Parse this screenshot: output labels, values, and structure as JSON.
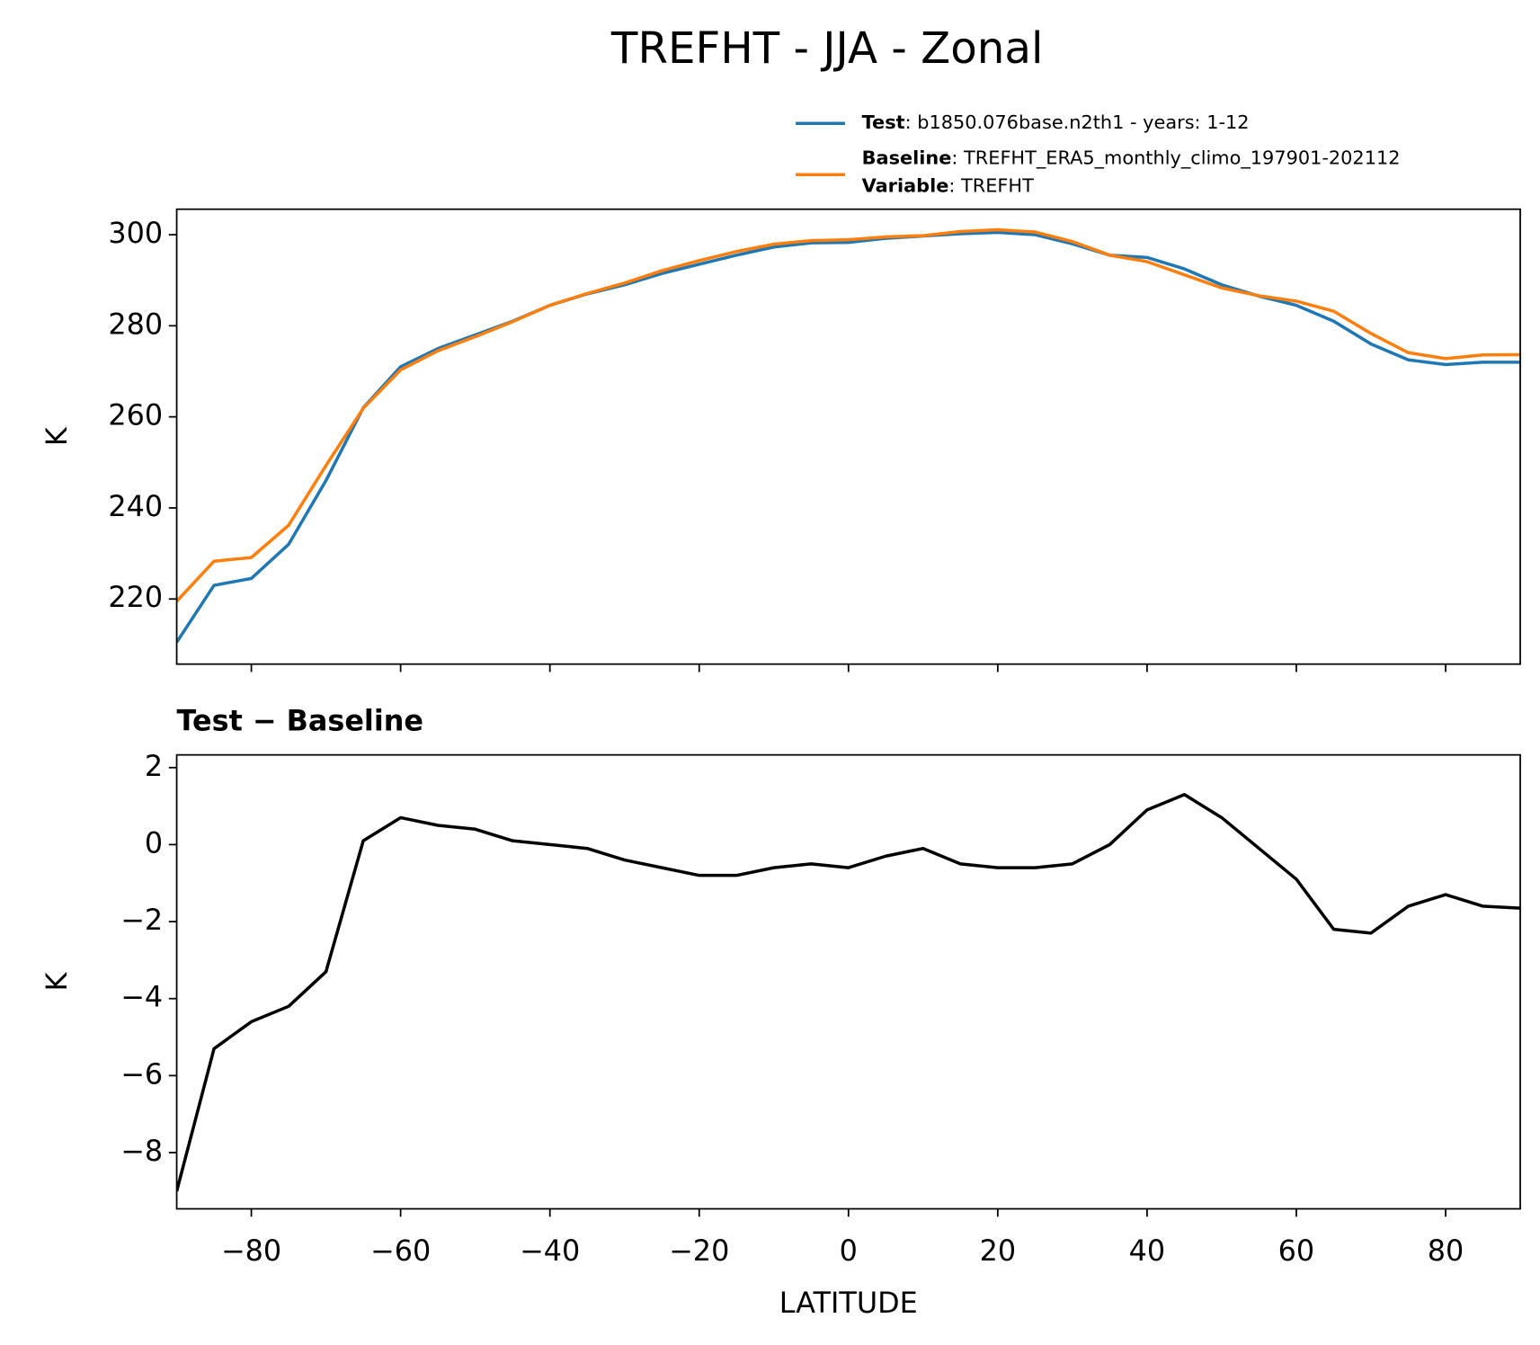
{
  "chart_data": [
    {
      "type": "line",
      "title": "TREFHT - JJA - Zonal",
      "ylabel": "K",
      "x": [
        -90,
        -85,
        -80,
        -75,
        -70,
        -65,
        -60,
        -55,
        -50,
        -45,
        -40,
        -35,
        -30,
        -25,
        -20,
        -15,
        -10,
        -5,
        0,
        5,
        10,
        15,
        20,
        25,
        30,
        35,
        40,
        45,
        50,
        55,
        60,
        65,
        70,
        75,
        80,
        85,
        90
      ],
      "series": [
        {
          "name": "Test",
          "label": ": b1850.076base.n2th1 - years: 1-12",
          "color": "#1f77b4",
          "values": [
            210.5,
            223,
            224.5,
            232,
            246,
            262,
            271,
            275,
            278,
            281,
            284.5,
            287,
            289,
            291.5,
            293.5,
            295.5,
            297.3,
            298.2,
            298.3,
            299.2,
            299.7,
            300.2,
            300.5,
            300,
            298,
            295.5,
            295,
            292.5,
            289,
            286.5,
            284.5,
            281,
            276,
            272.5,
            271.5,
            272,
            272
          ]
        },
        {
          "name": "Baseline",
          "label": ": TREFHT_ERA5_monthly_climo_197901-202112",
          "color": "#ff7f0e",
          "extra_name": "Variable",
          "extra_label": ": TREFHT",
          "values": [
            219.5,
            228.3,
            229.1,
            236.2,
            249.3,
            261.9,
            270.3,
            274.5,
            277.6,
            280.9,
            284.5,
            287.1,
            289.4,
            292.1,
            294.3,
            296.3,
            297.9,
            298.7,
            298.9,
            299.5,
            299.8,
            300.7,
            301.1,
            300.6,
            298.5,
            295.5,
            294.1,
            291.2,
            288.3,
            286.6,
            285.4,
            283.2,
            278.3,
            274.1,
            272.8,
            273.6,
            273.65
          ]
        }
      ],
      "xlim": [
        -90,
        90
      ],
      "xticks": [
        -80,
        -60,
        -40,
        -20,
        0,
        20,
        40,
        60,
        80
      ],
      "ylim": [
        205.7,
        305.6
      ],
      "yticks": [
        220,
        240,
        260,
        280,
        300
      ]
    },
    {
      "type": "line",
      "title": "Test − Baseline",
      "ylabel": "K",
      "xlabel": "LATITUDE",
      "x": [
        -90,
        -85,
        -80,
        -75,
        -70,
        -65,
        -60,
        -55,
        -50,
        -45,
        -40,
        -35,
        -30,
        -25,
        -20,
        -15,
        -10,
        -5,
        0,
        5,
        10,
        15,
        20,
        25,
        30,
        35,
        40,
        45,
        50,
        55,
        60,
        65,
        70,
        75,
        80,
        85,
        90
      ],
      "series": [
        {
          "color": "#000000",
          "values": [
            -9,
            -5.3,
            -4.6,
            -4.2,
            -3.3,
            0.1,
            0.7,
            0.5,
            0.4,
            0.1,
            0,
            -0.1,
            -0.4,
            -0.6,
            -0.8,
            -0.8,
            -0.6,
            -0.5,
            -0.6,
            -0.3,
            -0.1,
            -0.5,
            -0.6,
            -0.6,
            -0.5,
            0,
            0.9,
            1.3,
            0.7,
            -0.1,
            -0.9,
            -2.2,
            -2.3,
            -1.6,
            -1.3,
            -1.6,
            -1.65
          ]
        }
      ],
      "xlim": [
        -90,
        90
      ],
      "xticks": [
        {
          "value": -80,
          "label": "−80"
        },
        {
          "value": -60,
          "label": "−60"
        },
        {
          "value": -40,
          "label": "−40"
        },
        {
          "value": -20,
          "label": "−20"
        },
        0,
        20,
        40,
        60,
        80
      ],
      "ylim": [
        -9.46,
        2.33
      ],
      "yticks": [
        {
          "value": -8,
          "label": "−8"
        },
        {
          "value": -6,
          "label": "−6"
        },
        {
          "value": -4,
          "label": "−4"
        },
        {
          "value": -2,
          "label": "−2"
        },
        0,
        2
      ]
    }
  ]
}
